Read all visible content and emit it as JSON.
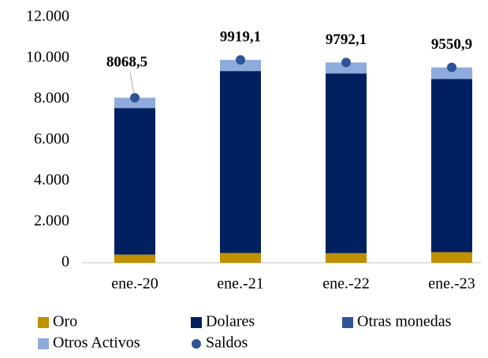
{
  "chart_data": {
    "type": "bar",
    "stacked": true,
    "categories": [
      "ene.-20",
      "ene.-21",
      "ene.-22",
      "ene.-23"
    ],
    "series": [
      {
        "name": "Oro",
        "color": "#bf9000",
        "values": [
          400,
          480,
          470,
          520
        ]
      },
      {
        "name": "Dolares",
        "color": "#002060",
        "values": [
          7150,
          8880,
          8770,
          8450
        ]
      },
      {
        "name": "Otras monedas",
        "color": "#2f5597",
        "values": [
          30,
          30,
          30,
          30
        ]
      },
      {
        "name": "Otros Activos",
        "color": "#8faadc",
        "values": [
          488.5,
          529,
          522,
          550
        ]
      },
      {
        "name": "Saldos",
        "type": "scatter",
        "color": "#2f5597",
        "values": [
          8068.5,
          9919.1,
          9792.1,
          9550.9
        ],
        "value_labels": [
          "8068,5",
          "9919,1",
          "9792,1",
          "9550,9"
        ]
      }
    ],
    "ylim": [
      0,
      12000
    ],
    "yticks": [
      0,
      {
        "value": 2000,
        "label": "2.000"
      },
      {
        "value": 4000,
        "label": "4.000"
      },
      {
        "value": 6000,
        "label": "6.000"
      },
      {
        "value": 8000,
        "label": "8.000"
      },
      {
        "value": 10000,
        "label": "10.000"
      },
      {
        "value": 12000,
        "label": "12.000"
      }
    ],
    "grid": false,
    "legend": "bottom"
  }
}
